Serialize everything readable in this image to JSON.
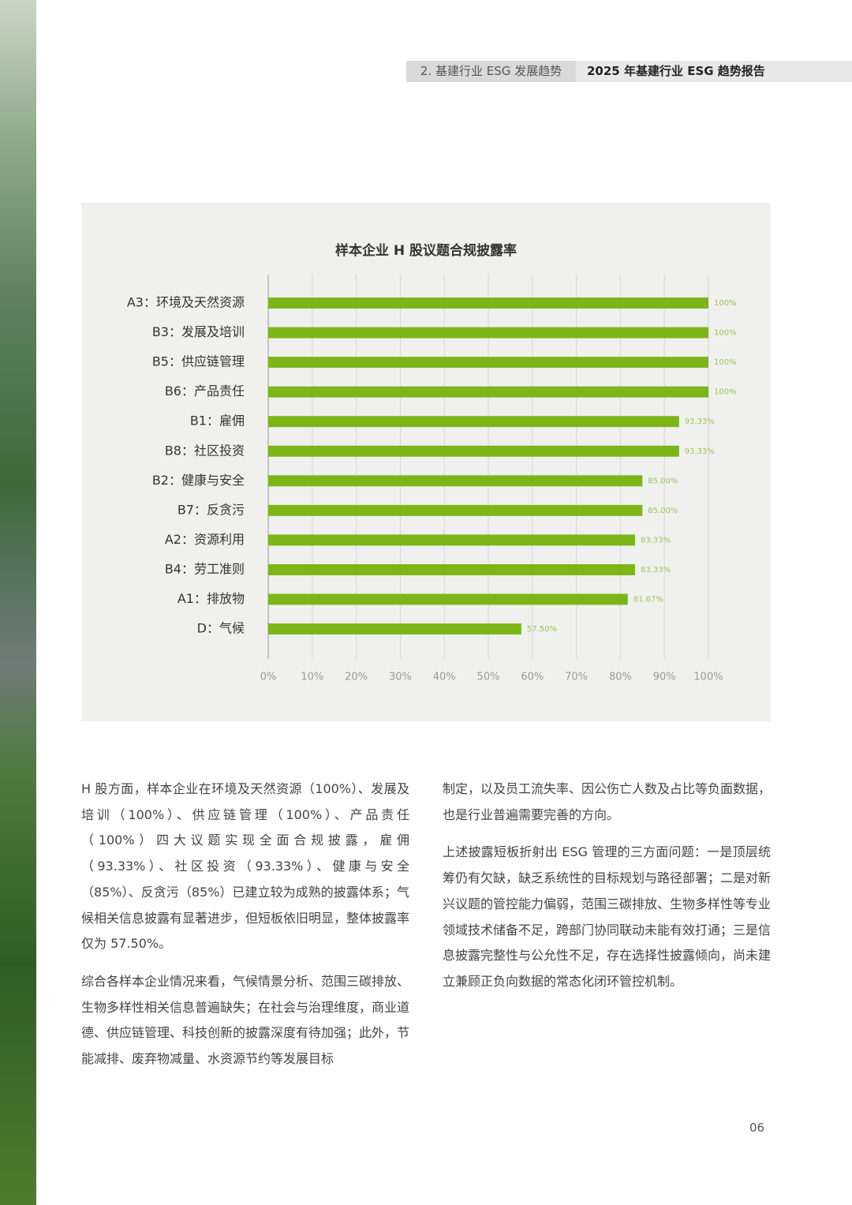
{
  "header": {
    "section": "2. 基建行业 ESG 发展趋势",
    "report": "2025 年基建行业 ESG 趋势报告"
  },
  "chart_data": {
    "type": "bar",
    "orientation": "horizontal",
    "title": "样本企业 H 股议题合规披露率",
    "categories": [
      "A3：环境及天然资源",
      "B3：发展及培训",
      "B5：供应链管理",
      "B6：产品责任",
      "B1：雇佣",
      "B8：社区投资",
      "B2：健康与安全",
      "B7：反贪污",
      "A2：资源利用",
      "B4：劳工准则",
      "A1：排放物",
      "D：气候"
    ],
    "values": [
      100,
      100,
      100,
      100,
      93.33,
      93.33,
      85,
      85,
      83.33,
      83.33,
      81.67,
      57.5
    ],
    "value_labels": [
      "100%",
      "100%",
      "100%",
      "100%",
      "93.33%",
      "93.33%",
      "85.00%",
      "85.00%",
      "83.33%",
      "83.33%",
      "81.67%",
      "57.50%"
    ],
    "color": "#7cb518",
    "xlim": [
      0,
      100
    ],
    "xticks": [
      {
        "value": 0,
        "label": "0%"
      },
      {
        "value": 10,
        "label": "10%"
      },
      {
        "value": 20,
        "label": "20%"
      },
      {
        "value": 30,
        "label": "30%"
      },
      {
        "value": 40,
        "label": "40%"
      },
      {
        "value": 50,
        "label": "50%"
      },
      {
        "value": 60,
        "label": "60%"
      },
      {
        "value": 70,
        "label": "70%"
      },
      {
        "value": 80,
        "label": "80%"
      },
      {
        "value": 90,
        "label": "90%"
      },
      {
        "value": 100,
        "label": "100%"
      }
    ],
    "grid": true
  },
  "left_column": [
    "H 股方面，样本企业在环境及天然资源（100%）、发展及培训（100%）、供应链管理（100%）、产品责任（100%）四大议题实现全面合规披露，雇佣（93.33%）、社区投资（93.33%）、健康与安全（85%）、反贪污（85%）已建立较为成熟的披露体系；气候相关信息披露有显著进步，但短板依旧明显，整体披露率仅为 57.50%。",
    "综合各样本企业情况来看，气候情景分析、范围三碳排放、生物多样性相关信息普遍缺失；在社会与治理维度，商业道德、供应链管理、科技创新的披露深度有待加强；此外，节能减排、废弃物减量、水资源节约等发展目标"
  ],
  "right_column": [
    "制定，以及员工流失率、因公伤亡人数及占比等负面数据，也是行业普遍需要完善的方向。",
    "上述披露短板折射出 ESG 管理的三方面问题：一是顶层统筹仍有欠缺，缺乏系统性的目标规划与路径部署；二是对新兴议题的管控能力偏弱，范围三碳排放、生物多样性等专业领域技术储备不足，跨部门协同联动未能有效打通；三是信息披露完整性与公允性不足，存在选择性披露倾向，尚未建立兼顾正负向数据的常态化闭环管控机制。"
  ],
  "page_number": "06"
}
